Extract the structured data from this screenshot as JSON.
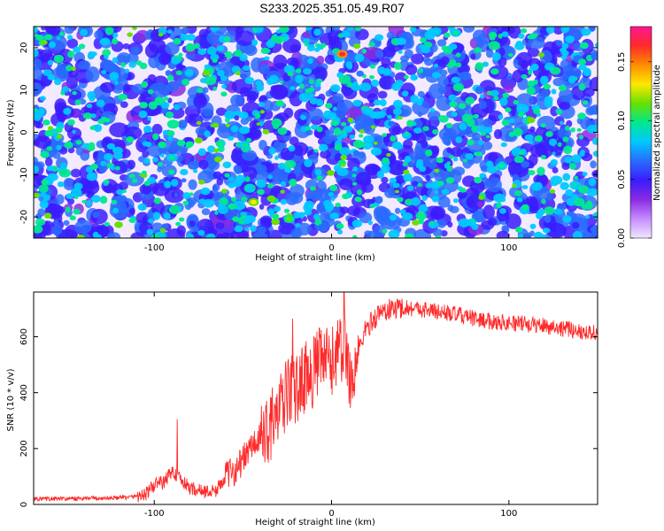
{
  "title": "S233.2025.351.05.49.R07",
  "chart_data": [
    {
      "type": "heatmap",
      "title": "S233.2025.351.05.49.R07",
      "xlabel": "Height of straight line (km)",
      "ylabel": "Frequency (Hz)",
      "xlim": [
        -168,
        150
      ],
      "ylim": [
        -25,
        25
      ],
      "xticks": [
        -100,
        0,
        100
      ],
      "yticks": [
        -20,
        -10,
        0,
        10,
        20
      ],
      "colorbar": {
        "label": "Normalized spectral amplitude",
        "range": [
          0,
          0.18
        ],
        "ticks": [
          "0.00",
          "0.05",
          "0.10",
          "0.15"
        ],
        "colormap": [
          "#f0e6ff",
          "#c58cff",
          "#8a2be2",
          "#3a1cff",
          "#2a6bff",
          "#00c8ff",
          "#00e890",
          "#66e000",
          "#ffe800",
          "#ff8c00",
          "#ff2a2a",
          "#ff1493"
        ]
      },
      "hotspots": [
        {
          "x": 6,
          "y": 18.5,
          "value": 0.17
        },
        {
          "x": -44,
          "y": -16.5,
          "value": 0.13
        },
        {
          "x": -24,
          "y": -20.5,
          "value": 0.12
        },
        {
          "x": -90,
          "y": -6,
          "value": 0.1
        },
        {
          "x": 96,
          "y": -8,
          "value": 0.1
        },
        {
          "x": 70,
          "y": 23.5,
          "value": 0.09
        },
        {
          "x": -49,
          "y": -3,
          "value": 0.1
        }
      ]
    },
    {
      "type": "line",
      "xlabel": "Height of straight line (km)",
      "ylabel": "SNR (10 * v/v)",
      "xlim": [
        -168,
        150
      ],
      "ylim": [
        0,
        760
      ],
      "xticks": [
        -100,
        0,
        100
      ],
      "yticks": [
        0,
        200,
        400,
        600
      ],
      "color": "#ff2a2a",
      "series": [
        {
          "name": "SNR",
          "x": [
            -168,
            -150,
            -130,
            -115,
            -105,
            -98,
            -95,
            -90,
            -87,
            -84,
            -80,
            -75,
            -70,
            -65,
            -60,
            -55,
            -50,
            -45,
            -42,
            -40,
            -38,
            -35,
            -30,
            -28,
            -25,
            -22,
            -20,
            -18,
            -15,
            -12,
            -10,
            -5,
            0,
            3,
            5,
            8,
            10,
            12,
            14,
            18,
            22,
            28,
            35,
            40,
            50,
            60,
            70,
            80,
            90,
            100,
            110,
            120,
            130,
            140,
            150
          ],
          "values": [
            20,
            20,
            22,
            25,
            35,
            80,
            75,
            120,
            100,
            80,
            60,
            50,
            45,
            50,
            100,
            120,
            160,
            210,
            220,
            240,
            260,
            280,
            320,
            350,
            400,
            420,
            400,
            430,
            460,
            450,
            480,
            520,
            500,
            560,
            540,
            560,
            480,
            420,
            520,
            610,
            650,
            690,
            700,
            705,
            700,
            690,
            680,
            665,
            655,
            650,
            645,
            640,
            630,
            620,
            615
          ],
          "peaks": [
            {
              "x": -87,
              "y": 305
            },
            {
              "x": -22,
              "y": 665
            },
            {
              "x": -12,
              "y": 555
            },
            {
              "x": 7,
              "y": 760
            }
          ]
        }
      ]
    }
  ]
}
